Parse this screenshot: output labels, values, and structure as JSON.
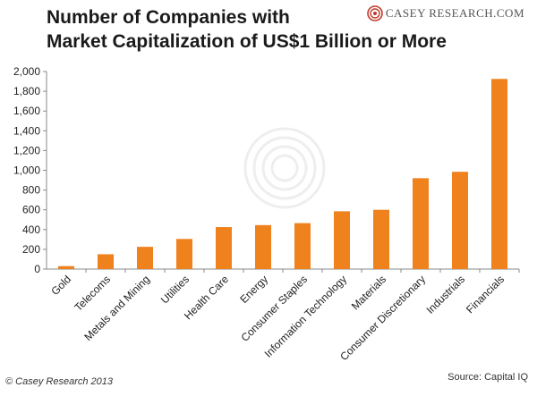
{
  "title_line1": "Number of Companies with",
  "title_line2": "Market Capitalization of US$1 Billion or More",
  "logo_text": "CASEY RESEARCH.COM",
  "copyright": "© Casey Research 2013",
  "source": "Source: Capital IQ",
  "colors": {
    "bar": "#f0821e",
    "axis": "#888888",
    "text": "#222222"
  },
  "chart_data": {
    "type": "bar",
    "title": "Number of Companies with Market Capitalization of US$1 Billion or More",
    "xlabel": "",
    "ylabel": "",
    "ylim": [
      0,
      2000
    ],
    "yticks": [
      "0",
      "200",
      "400",
      "600",
      "800",
      "1,000",
      "1,200",
      "1,400",
      "1,600",
      "1,800",
      "2,000"
    ],
    "grid": false,
    "categories": [
      "Gold",
      "Telecoms",
      "Metals and Mining",
      "Utilities",
      "Health Care",
      "Energy",
      "Consumer Staples",
      "Information Technology",
      "Materials",
      "Consumer Discretionary",
      "Industrials",
      "Financials"
    ],
    "values": [
      30,
      150,
      225,
      305,
      425,
      445,
      465,
      585,
      600,
      920,
      985,
      1925
    ]
  }
}
